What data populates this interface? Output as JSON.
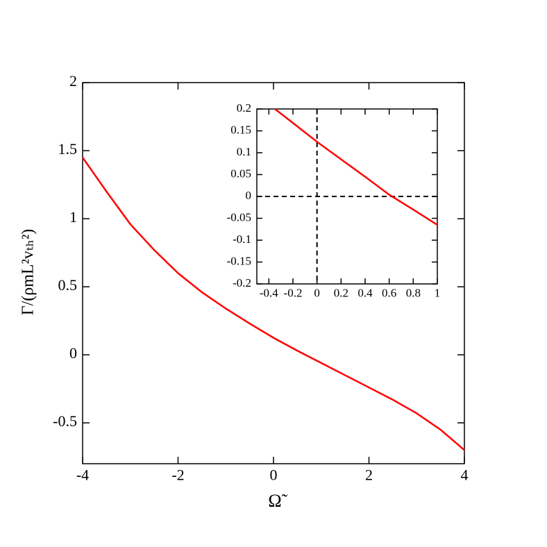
{
  "chart_data": [
    {
      "type": "line",
      "xlabel": "Ω̃",
      "ylabel": "Γ/(ρmL²vₜₕ²)",
      "x": [
        -4,
        -3.5,
        -3,
        -2.5,
        -2,
        -1.5,
        -1,
        -0.5,
        0,
        0.5,
        1,
        1.5,
        2,
        2.5,
        3,
        3.5,
        4
      ],
      "series": [
        {
          "color": "#ff0000",
          "values": [
            1.45,
            1.2,
            0.96,
            0.77,
            0.6,
            0.46,
            0.34,
            0.23,
            0.125,
            0.03,
            -0.06,
            -0.15,
            -0.24,
            -0.33,
            -0.43,
            -0.55,
            -0.7
          ]
        }
      ],
      "xlim": [
        -4,
        4
      ],
      "ylim": [
        -0.8,
        2
      ],
      "xticks": [
        -4,
        -2,
        0,
        2,
        4
      ],
      "yticks": [
        -0.5,
        0,
        0.5,
        1,
        1.5,
        2
      ]
    },
    {
      "type": "line",
      "x": [
        -0.35,
        -0.2,
        0,
        0.2,
        0.4,
        0.6,
        0.8,
        1
      ],
      "series": [
        {
          "color": "#ff0000",
          "values": [
            0.2,
            0.168,
            0.125,
            0.085,
            0.045,
            0.004,
            -0.03,
            -0.065
          ]
        }
      ],
      "xlim": [
        -0.5,
        1
      ],
      "ylim": [
        -0.2,
        0.2
      ],
      "xticks": [
        -0.4,
        -0.2,
        0,
        0.2,
        0.4,
        0.6,
        0.8,
        1
      ],
      "yticks": [
        -0.2,
        -0.15,
        -0.1,
        -0.05,
        0,
        0.05,
        0.1,
        0.15,
        0.2
      ],
      "zero_lines": true
    }
  ]
}
